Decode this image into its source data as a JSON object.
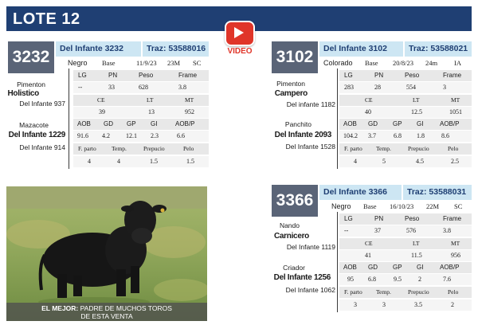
{
  "header": {
    "title": "LOTE 12"
  },
  "video": {
    "label": "VIDEO"
  },
  "lots": [
    {
      "number": "3232",
      "name": "Del Infante 3232",
      "traz": "Traz: 53588016",
      "meta": [
        "Negro",
        "Base",
        "11/9/23",
        "23M",
        "SC"
      ],
      "sire_name": "Pimenton",
      "sire_bold": "Holistico",
      "sire_line": "Del Infante 937",
      "dam_name": "Mazacote",
      "dam_bold": "Del Infante 1229",
      "dam_line": "Del Infante 914",
      "row1_h": [
        "LG",
        "PN",
        "Peso",
        "Frame"
      ],
      "row1_v": [
        "--",
        "33",
        "628",
        "3.8"
      ],
      "row2_h": [
        "CE",
        "LT",
        "MT"
      ],
      "row2_v": [
        "39",
        "13",
        "952"
      ],
      "row3_h": [
        "AOB",
        "GD",
        "GP",
        "GI",
        "AOB/P"
      ],
      "row3_v": [
        "91.6",
        "4.2",
        "12.1",
        "2.3",
        "6.6"
      ],
      "row4_h": [
        "F. parto",
        "Temp.",
        "Prepucio",
        "Pelo"
      ],
      "row4_v": [
        "4",
        "4",
        "1.5",
        "1.5"
      ]
    },
    {
      "number": "3102",
      "name": "Del Infante 3102",
      "traz": "Traz: 53588021",
      "meta": [
        "Colorado",
        "Base",
        "20/8/23",
        "24m",
        "IA"
      ],
      "sire_name": "Pimenton",
      "sire_bold": "Campero",
      "sire_line": "Del infante 1182",
      "dam_name": "Panchito",
      "dam_bold": "Del Infante 2093",
      "dam_line": "Del Infante 1528",
      "row1_h": [
        "LG",
        "PN",
        "Peso",
        "Frame"
      ],
      "row1_v": [
        "283",
        "28",
        "554",
        "3"
      ],
      "row2_h": [
        "CE",
        "LT",
        "MT"
      ],
      "row2_v": [
        "40",
        "12.5",
        "1051"
      ],
      "row3_h": [
        "AOB",
        "GD",
        "GP",
        "GI",
        "AOB/P"
      ],
      "row3_v": [
        "104.2",
        "3.7",
        "6.8",
        "1.8",
        "8.6"
      ],
      "row4_h": [
        "F. parto",
        "Temp.",
        "Prepucio",
        "Pelo"
      ],
      "row4_v": [
        "4",
        "5",
        "4.5",
        "2.5"
      ]
    },
    {
      "number": "3366",
      "name": "Del Infante 3366",
      "traz": "Traz: 53588031",
      "meta": [
        "Negro",
        "Base",
        "16/10/23",
        "22M",
        "SC"
      ],
      "sire_name": "Nando",
      "sire_bold": "Carnicero",
      "sire_line": "Del Infante 1119",
      "dam_name": "Criador",
      "dam_bold": "Del Infante 1256",
      "dam_line": "Del Infante 1062",
      "row1_h": [
        "LG",
        "PN",
        "Peso",
        "Frame"
      ],
      "row1_v": [
        "--",
        "37",
        "576",
        "3.8"
      ],
      "row2_h": [
        "CE",
        "LT",
        "MT"
      ],
      "row2_v": [
        "41",
        "11.5",
        "956"
      ],
      "row3_h": [
        "AOB",
        "GD",
        "GP",
        "GI",
        "AOB/P"
      ],
      "row3_v": [
        "95",
        "6.8",
        "9.5",
        "2",
        "7.6"
      ],
      "row4_h": [
        "F. parto",
        "Temp.",
        "Prepucio",
        "Pelo"
      ],
      "row4_v": [
        "3",
        "3",
        "3.5",
        "2"
      ]
    }
  ],
  "photo": {
    "caption_lead": "EL MEJOR:",
    "caption_rest": " PADRE DE MUCHOS TOROS",
    "caption_line2": "DE ESTA VENTA"
  }
}
